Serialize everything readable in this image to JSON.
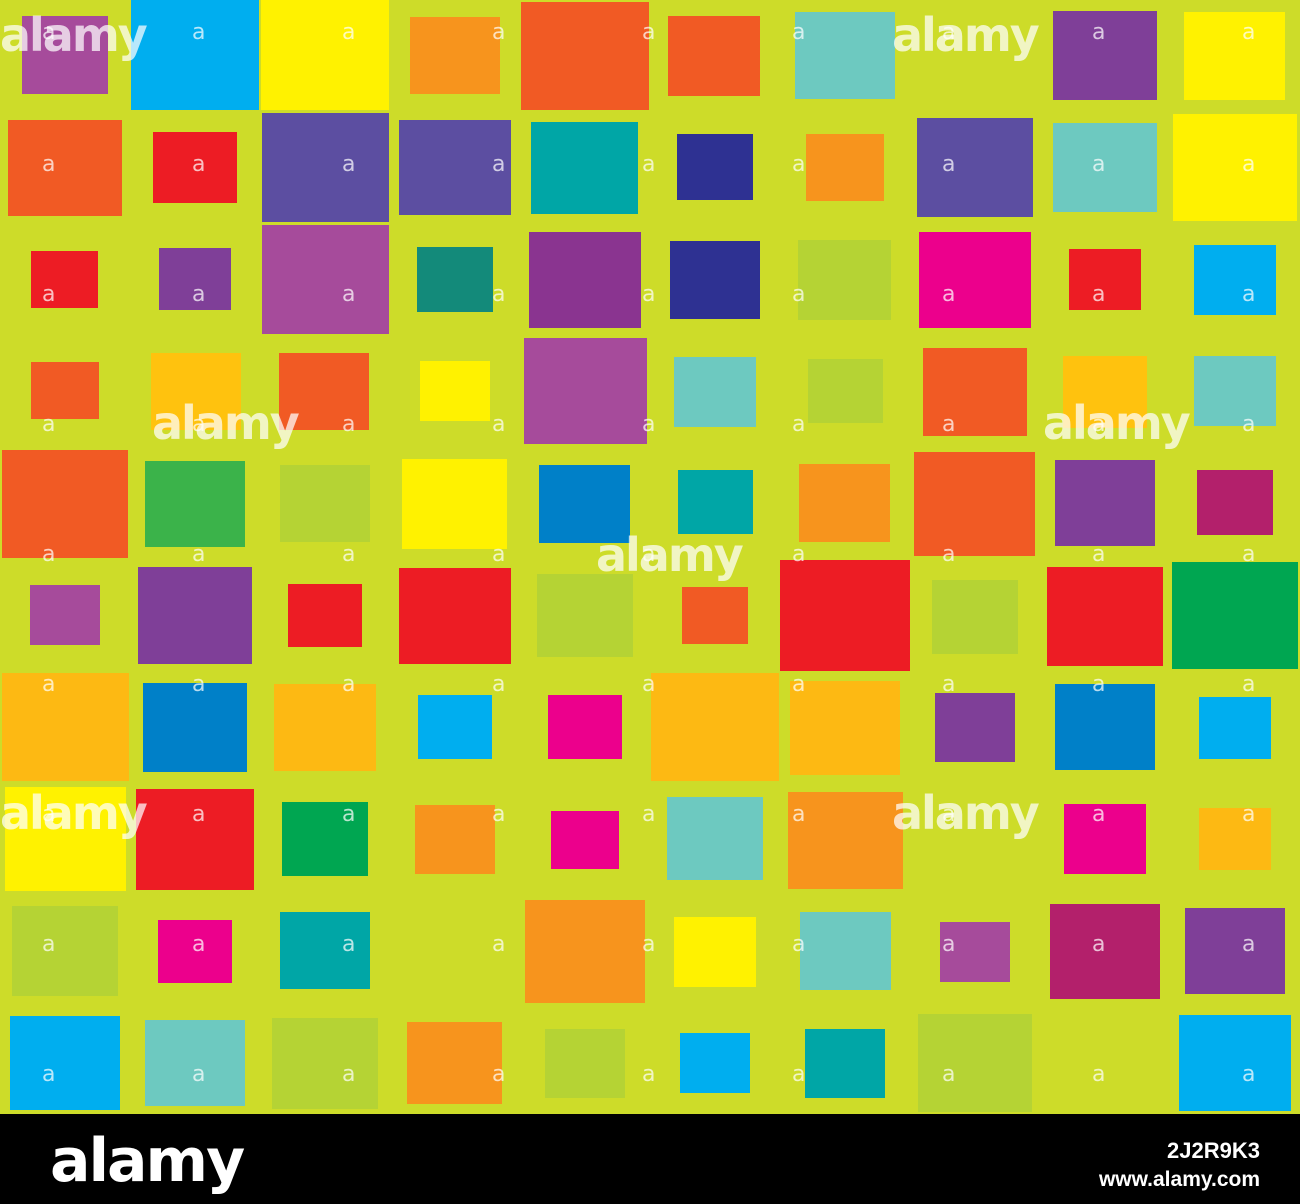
{
  "image": {
    "background_color": "#cddc29",
    "tile_colors": [
      "#a64b9b",
      "#00aeef",
      "#fff200",
      "#f7941d",
      "#f15a24",
      "#6dc9c0",
      "#7f3f98",
      "#5c4ea1",
      "#ed1c24",
      "#00a6a6",
      "#2e3192",
      "#ec008c",
      "#138a7a",
      "#8a3490",
      "#b5d334",
      "#ffc20e",
      "#3bb34a",
      "#0080c8",
      "#b3206b",
      "#00a651",
      "#fdb913"
    ],
    "watermark_word": "alamy",
    "watermark_letter": "a"
  },
  "footer": {
    "brand": "alamy",
    "image_code": "2J2R9K3",
    "url": "www.alamy.com"
  }
}
